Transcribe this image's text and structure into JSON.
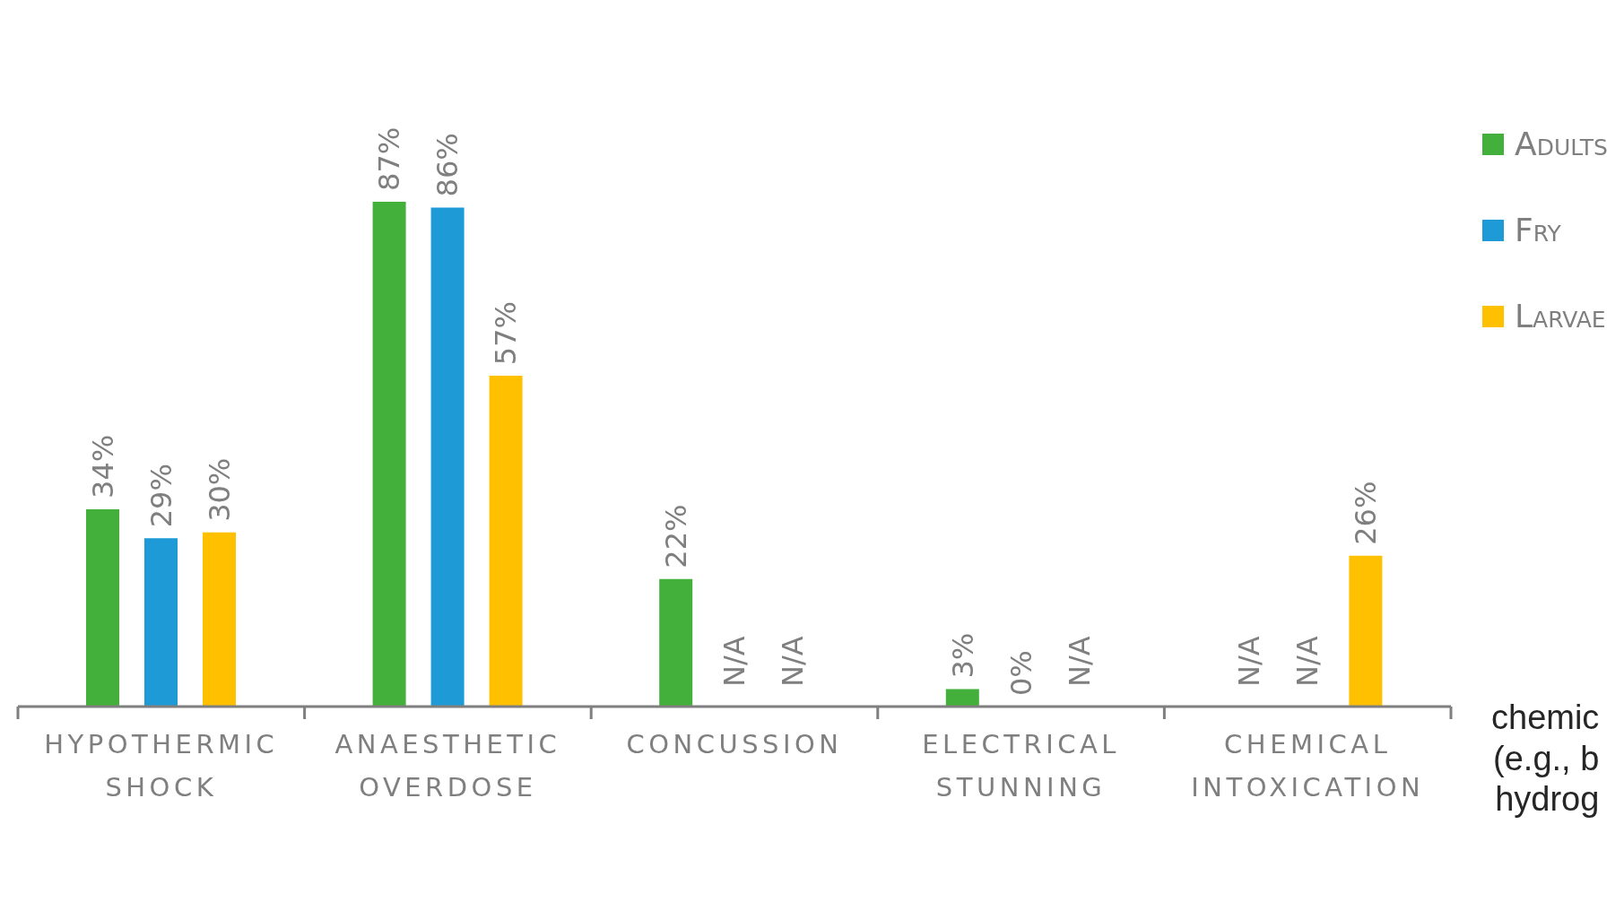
{
  "chart_data": {
    "type": "bar",
    "categories": [
      "HYPOTHERMIC SHOCK",
      "ANAESTHETIC OVERDOSE",
      "CONCUSSION",
      "ELECTRICAL STUNNING",
      "CHEMICAL INTOXICATION"
    ],
    "series": [
      {
        "name": "Adults",
        "color": "#43b03c",
        "values": [
          34,
          87,
          22,
          3,
          null
        ],
        "value_labels": [
          "34%",
          "87%",
          "22%",
          "3%",
          "N/A"
        ]
      },
      {
        "name": "Fry",
        "color": "#1e9bd7",
        "values": [
          29,
          86,
          null,
          0,
          null
        ],
        "value_labels": [
          "29%",
          "86%",
          "N/A",
          "0%",
          "N/A"
        ]
      },
      {
        "name": "Larvae",
        "color": "#ffc000",
        "values": [
          30,
          57,
          null,
          null,
          26
        ],
        "value_labels": [
          "30%",
          "57%",
          "N/A",
          "N/A",
          "26%"
        ]
      }
    ],
    "legend": "right",
    "annotations": [
      "chemic\n(e.g., b\nhydrog"
    ]
  }
}
